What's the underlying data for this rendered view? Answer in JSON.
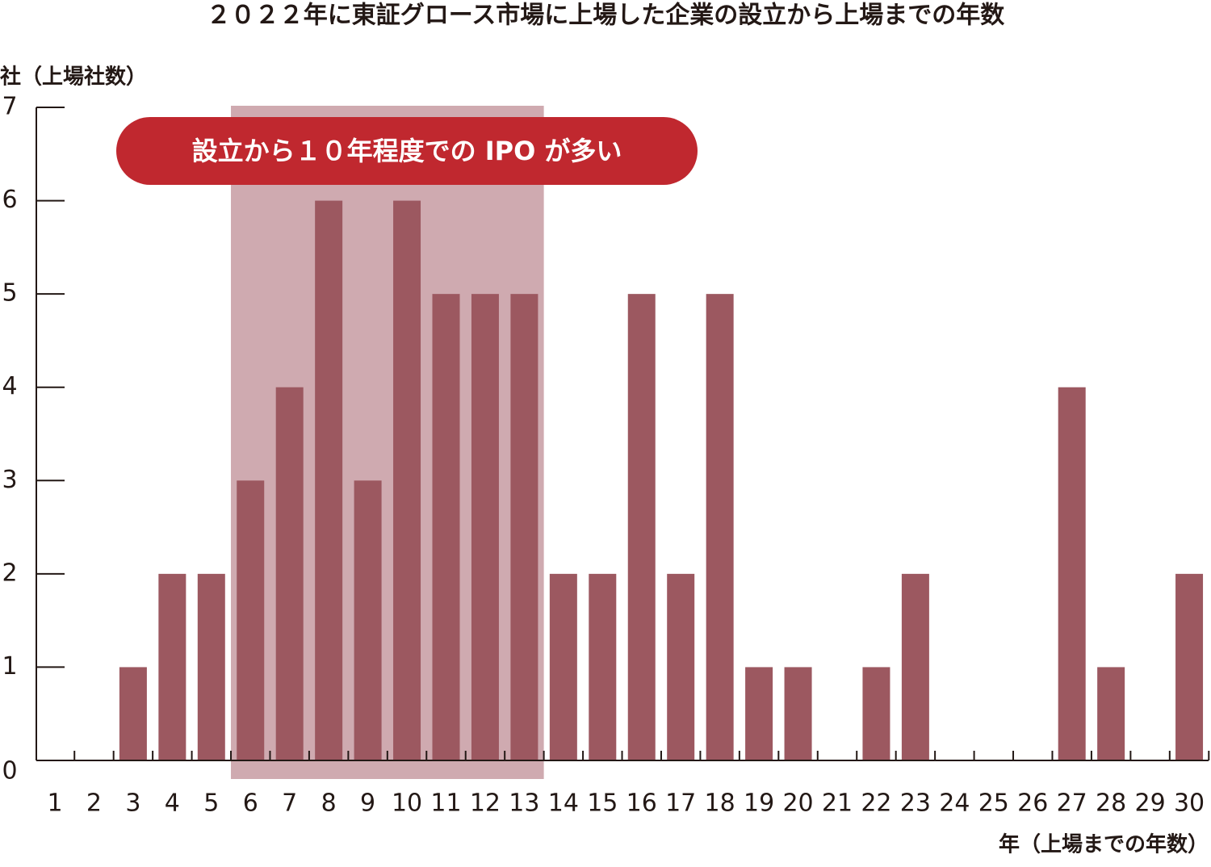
{
  "chart_data": {
    "type": "bar",
    "title": "２０２２年に東証グロース市場に上場した企業の設立から上場までの年数",
    "y_label": "社（上場社数）",
    "x_label": "年（上場までの年数）",
    "annotation": "設立から１０年程度での IPO が多い",
    "categories": [
      "1",
      "2",
      "3",
      "4",
      "5",
      "6",
      "7",
      "8",
      "9",
      "10",
      "11",
      "12",
      "13",
      "14",
      "15",
      "16",
      "17",
      "18",
      "19",
      "20",
      "21",
      "22",
      "23",
      "24",
      "25",
      "26",
      "27",
      "28",
      "29",
      "30"
    ],
    "values": [
      0,
      0,
      1,
      2,
      2,
      3,
      4,
      6,
      3,
      6,
      5,
      5,
      5,
      2,
      2,
      5,
      2,
      5,
      1,
      1,
      0,
      1,
      2,
      0,
      0,
      0,
      4,
      1,
      0,
      2
    ],
    "color": "#9c5860",
    "ylim": [
      0,
      7
    ],
    "yticks": [
      0,
      1,
      2,
      3,
      4,
      5,
      6,
      7
    ],
    "grid": false
  }
}
